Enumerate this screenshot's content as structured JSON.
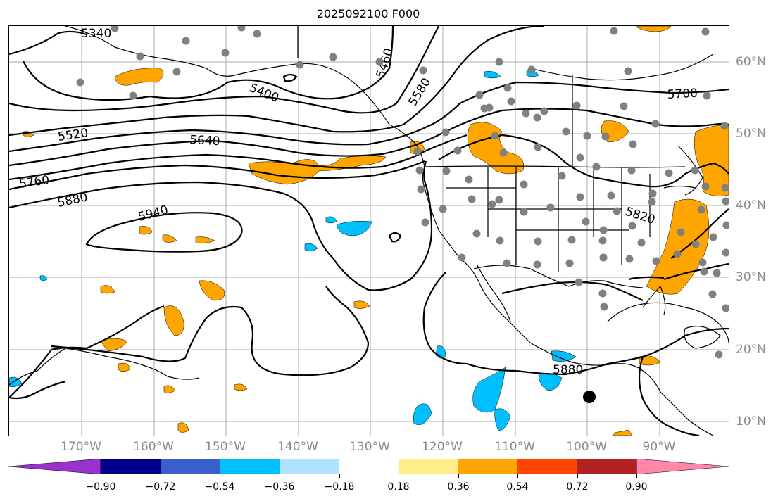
{
  "title": "2025092100 F000",
  "map": {
    "lon_labels": [
      "170°W",
      "160°W",
      "150°W",
      "140°W",
      "130°W",
      "120°W",
      "110°W",
      "100°W",
      "90°W"
    ],
    "lat_labels": [
      "60°N",
      "50°N",
      "40°N",
      "30°N",
      "20°N",
      "10°N"
    ],
    "contour_labels": [
      "5340",
      "5400",
      "5460",
      "5520",
      "5580",
      "5640",
      "5700",
      "5760",
      "5820",
      "5880",
      "5940",
      "5880"
    ],
    "colors": {
      "contour": "#000000",
      "grid": "#aaaaaa",
      "positive": "#ffa500",
      "negative": "#00bfff",
      "station": "#808080"
    }
  },
  "colorbar": {
    "ticks": [
      "−0.90",
      "−0.72",
      "−0.54",
      "−0.36",
      "−0.18",
      "0.18",
      "0.36",
      "0.54",
      "0.72",
      "0.90"
    ],
    "colors": [
      "#9932cc",
      "#00008b",
      "#3a5fcd",
      "#00bfff",
      "#b0e2ff",
      "#ffffff",
      "#ffec8b",
      "#ffa500",
      "#ff4500",
      "#b22222",
      "#ff88aa"
    ]
  }
}
